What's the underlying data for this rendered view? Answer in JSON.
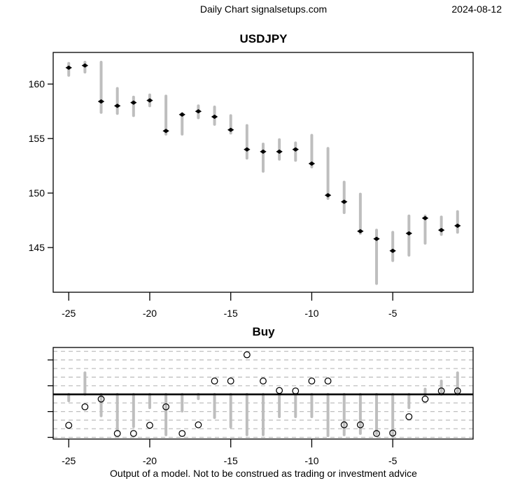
{
  "header": {
    "title": "Daily Chart signalsetups.com",
    "date": "2024-08-12"
  },
  "footer": {
    "disclaimer": "Output of a model. Not to be construed as trading or investment advice"
  },
  "colors": {
    "bar_gray": "#BEBEBE",
    "grid_gray": "#C0C0C0",
    "axis_black": "#000000",
    "marker_black": "#000000",
    "background": "#FFFFFF"
  },
  "chart_data": [
    {
      "type": "bar",
      "variant": "high-low-close-price-bars",
      "title": "USDJPY",
      "xlabel": "",
      "ylabel": "",
      "x": [
        -25,
        -24,
        -23,
        -22,
        -21,
        -20,
        -19,
        -18,
        -17,
        -16,
        -15,
        -14,
        -13,
        -12,
        -11,
        -10,
        -9,
        -8,
        -7,
        -6,
        -5,
        -4,
        -3,
        -2,
        -1
      ],
      "series": [
        {
          "name": "high",
          "values": [
            161.9,
            162.0,
            162.0,
            159.6,
            158.8,
            159.0,
            158.9,
            157.3,
            158.0,
            157.9,
            157.1,
            156.2,
            154.5,
            154.9,
            154.6,
            155.3,
            154.1,
            151.0,
            149.9,
            146.6,
            146.4,
            147.9,
            147.9,
            147.8,
            148.3
          ]
        },
        {
          "name": "low",
          "values": [
            160.8,
            161.1,
            157.4,
            157.3,
            157.1,
            158.0,
            155.4,
            155.4,
            156.9,
            156.3,
            155.5,
            153.2,
            152.0,
            153.1,
            153.0,
            152.4,
            149.5,
            148.2,
            146.3,
            141.7,
            143.8,
            144.3,
            145.4,
            146.2,
            146.4
          ]
        },
        {
          "name": "close",
          "values": [
            161.5,
            161.7,
            158.4,
            158.0,
            158.3,
            158.5,
            155.7,
            157.2,
            157.5,
            157.0,
            155.8,
            154.0,
            153.8,
            153.8,
            154.0,
            152.7,
            149.8,
            149.2,
            146.5,
            145.8,
            144.7,
            146.3,
            147.7,
            146.6,
            147.0
          ]
        }
      ],
      "x_ticks": [
        -25,
        -20,
        -15,
        -10,
        -5
      ],
      "y_ticks": [
        145,
        150,
        155,
        160
      ],
      "xlim": [
        -25.96,
        -0.04
      ],
      "ylim": [
        140.9,
        162.9
      ],
      "grid": false,
      "legend": "none"
    },
    {
      "type": "bar",
      "variant": "signal-bars-with-open-circle-points",
      "title": "Buy",
      "xlabel": "",
      "ylabel": "",
      "x": [
        -25,
        -24,
        -23,
        -22,
        -21,
        -20,
        -19,
        -18,
        -17,
        -16,
        -15,
        -14,
        -13,
        -12,
        -11,
        -10,
        -9,
        -8,
        -7,
        -6,
        -5,
        -4,
        -3,
        -2,
        -1
      ],
      "series": [
        {
          "name": "signal-bar",
          "values": [
            -0.75,
            2.5,
            -2.5,
            -4.15,
            -3.75,
            -1.55,
            -4.7,
            -1.95,
            -0.5,
            -2.7,
            -3.8,
            -4.7,
            -4.7,
            -2.6,
            -2.6,
            -2.6,
            -4.8,
            -4.7,
            -4.55,
            -4.6,
            -4.95,
            -1.55,
            0.6,
            1.55,
            2.5
          ]
        },
        {
          "name": "model-point",
          "values": [
            -3.6,
            -1.45,
            -0.55,
            -4.55,
            -4.55,
            -3.6,
            -1.45,
            -4.55,
            -3.55,
            1.55,
            1.55,
            4.6,
            1.55,
            0.45,
            0.4,
            1.55,
            1.55,
            -3.55,
            -3.55,
            -4.55,
            -4.5,
            -2.6,
            -0.55,
            0.4,
            0.4
          ]
        }
      ],
      "baseline": 0,
      "gridlines": [
        -5,
        -4,
        -3,
        -2,
        -1,
        1,
        2,
        3,
        4,
        5
      ],
      "x_ticks": [
        -25,
        -20,
        -15,
        -10,
        -5
      ],
      "y_ticks": [
        4,
        1,
        -2,
        -5
      ],
      "y_tick_labels": [
        "",
        "",
        "",
        ""
      ],
      "xlim": [
        -25.96,
        -0.04
      ],
      "ylim": [
        -5.2,
        5.45
      ],
      "grid": true,
      "legend": "none"
    }
  ]
}
